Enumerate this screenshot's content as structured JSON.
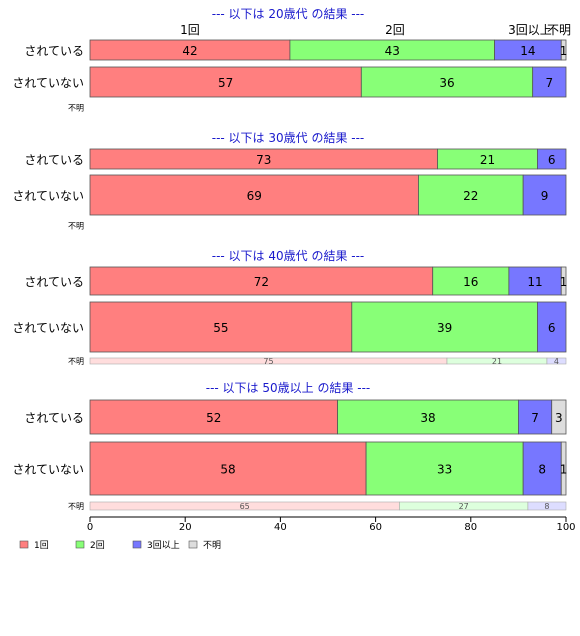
{
  "chart_data": {
    "type": "bar",
    "orientation": "horizontal",
    "stacked": true,
    "normalized_percent": true,
    "xlim": [
      0,
      100
    ],
    "x_ticks": [
      "0",
      "20",
      "40",
      "60",
      "80",
      "100"
    ],
    "column_headers": [
      "1回",
      "2回",
      "3回以上",
      "不明"
    ],
    "legend": {
      "position": "bottom-left",
      "items": [
        {
          "label": "1回",
          "color": "#ff7f7f"
        },
        {
          "label": "2回",
          "color": "#88ff77"
        },
        {
          "label": "3回以上",
          "color": "#7777ff"
        },
        {
          "label": "不明",
          "color": "#dddddd"
        }
      ]
    },
    "panels": [
      {
        "title": "--- 以下は 20歳代 の結果 ---",
        "rows": [
          {
            "label": "されている",
            "values": [
              42,
              43,
              14,
              1
            ],
            "size": "normal"
          },
          {
            "label": "されていない",
            "values": [
              57,
              36,
              7,
              0
            ],
            "size": "normal"
          },
          {
            "label": "不明",
            "values": [
              0,
              0,
              0,
              0
            ],
            "size": "thin"
          }
        ]
      },
      {
        "title": "--- 以下は 30歳代 の結果 ---",
        "rows": [
          {
            "label": "されている",
            "values": [
              73,
              21,
              6,
              0
            ],
            "size": "normal"
          },
          {
            "label": "されていない",
            "values": [
              69,
              22,
              9,
              0
            ],
            "size": "normal"
          },
          {
            "label": "不明",
            "values": [
              0,
              0,
              0,
              0
            ],
            "size": "thin"
          }
        ]
      },
      {
        "title": "--- 以下は 40歳代 の結果 ---",
        "rows": [
          {
            "label": "されている",
            "values": [
              72,
              16,
              11,
              1
            ],
            "size": "normal"
          },
          {
            "label": "されていない",
            "values": [
              55,
              39,
              6,
              0
            ],
            "size": "normal"
          },
          {
            "label": "不明",
            "values": [
              75,
              21,
              4,
              0
            ],
            "size": "thin"
          }
        ]
      },
      {
        "title": "--- 以下は 50歳以上 の結果 ---",
        "rows": [
          {
            "label": "されている",
            "values": [
              52,
              38,
              7,
              3
            ],
            "size": "normal"
          },
          {
            "label": "されていない",
            "values": [
              58,
              33,
              8,
              1
            ],
            "size": "normal"
          },
          {
            "label": "不明",
            "values": [
              65,
              27,
              8,
              0
            ],
            "size": "thin"
          }
        ]
      }
    ],
    "colors": {
      "series": [
        "#ff7f7f",
        "#88ff77",
        "#7777ff",
        "#dddddd"
      ],
      "faded": [
        "#ffdddd",
        "#ddffdd",
        "#ddddff",
        "#eeeeee"
      ],
      "title": "#1a1acc"
    }
  }
}
